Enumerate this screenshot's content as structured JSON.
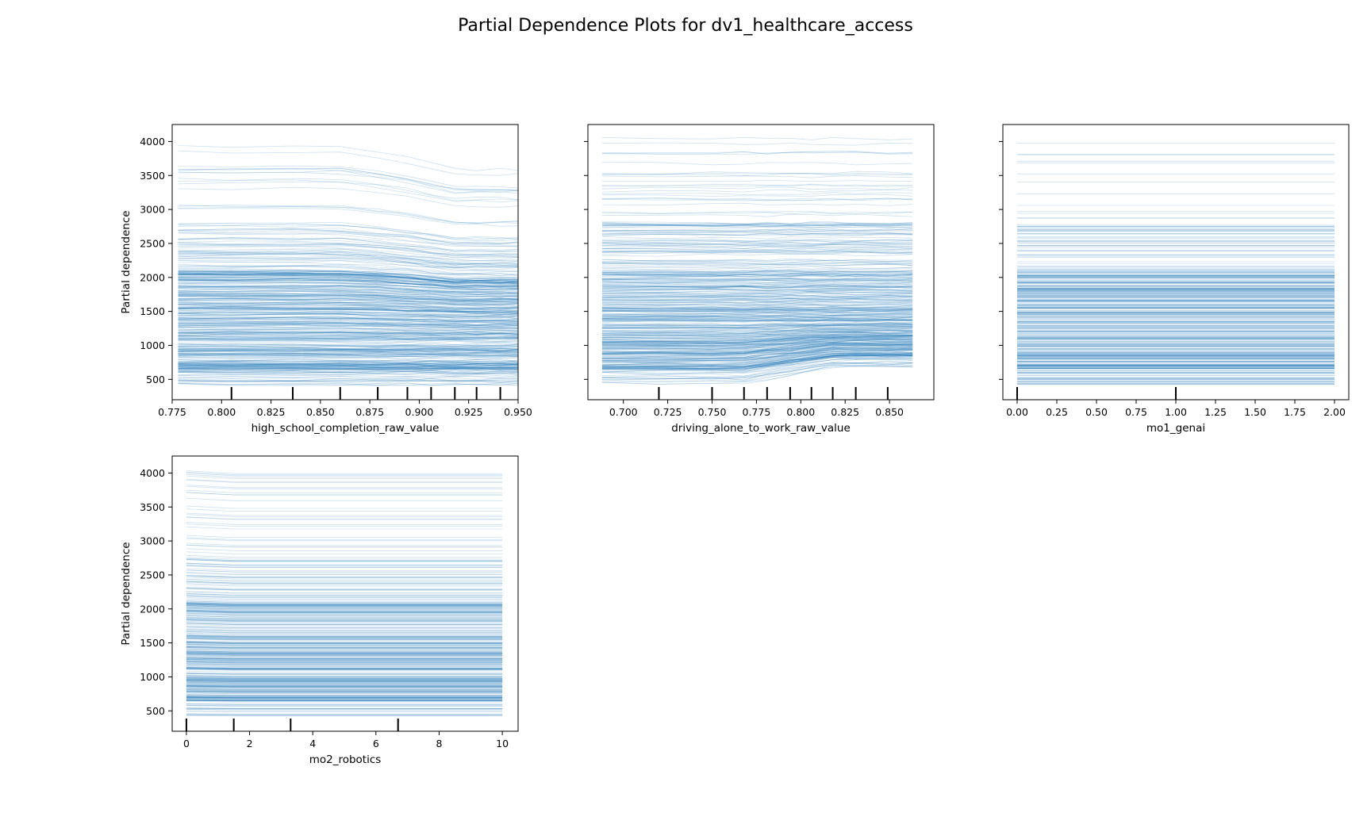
{
  "title": "Partial Dependence Plots for dv1_healthcare_access",
  "line_color": "#1f77b4",
  "chart_data": [
    {
      "type": "line",
      "xlabel": "high_school_completion_raw_value",
      "ylabel": "Partial dependence",
      "xlim": [
        0.775,
        0.95
      ],
      "ylim": [
        200,
        4250
      ],
      "xticks": [
        "0.775",
        "0.800",
        "0.825",
        "0.850",
        "0.875",
        "0.900",
        "0.925",
        "0.950"
      ],
      "yticks": [
        "500",
        "1000",
        "1500",
        "2000",
        "2500",
        "3000",
        "3500",
        "4000"
      ],
      "x": [
        0.778,
        0.805,
        0.836,
        0.86,
        0.879,
        0.894,
        0.906,
        0.918,
        0.929,
        0.941,
        0.95
      ],
      "deciles": [
        0.805,
        0.836,
        0.86,
        0.879,
        0.894,
        0.906,
        0.918,
        0.929,
        0.941
      ],
      "ice_range": [
        420,
        4060
      ]
    },
    {
      "type": "line",
      "xlabel": "driving_alone_to_work_raw_value",
      "ylabel": "",
      "xlim": [
        0.68,
        0.875
      ],
      "ylim": [
        200,
        4250
      ],
      "xticks": [
        "0.700",
        "0.725",
        "0.750",
        "0.775",
        "0.800",
        "0.825",
        "0.850"
      ],
      "yticks": [
        "500",
        "1000",
        "1500",
        "2000",
        "2500",
        "3000",
        "3500",
        "4000"
      ],
      "x": [
        0.688,
        0.72,
        0.75,
        0.768,
        0.781,
        0.794,
        0.806,
        0.818,
        0.831,
        0.849,
        0.863
      ],
      "deciles": [
        0.72,
        0.75,
        0.768,
        0.781,
        0.794,
        0.806,
        0.818,
        0.831,
        0.849
      ],
      "ice_range": [
        420,
        4060
      ]
    },
    {
      "type": "line",
      "xlabel": "mo1_genai",
      "ylabel": "",
      "xlim": [
        -0.09,
        2.09
      ],
      "ylim": [
        200,
        4250
      ],
      "xticks": [
        "0.00",
        "0.25",
        "0.50",
        "0.75",
        "1.00",
        "1.25",
        "1.50",
        "1.75",
        "2.00"
      ],
      "yticks": [
        "500",
        "1000",
        "1500",
        "2000",
        "2500",
        "3000",
        "3500",
        "4000"
      ],
      "x": [
        0,
        2
      ],
      "deciles": [
        0,
        1
      ],
      "ice_range": [
        420,
        4060
      ]
    },
    {
      "type": "line",
      "xlabel": "mo2_robotics",
      "ylabel": "Partial dependence",
      "xlim": [
        -0.45,
        10.5
      ],
      "ylim": [
        200,
        4250
      ],
      "xticks": [
        "0",
        "2",
        "4",
        "6",
        "8",
        "10"
      ],
      "yticks": [
        "500",
        "1000",
        "1500",
        "2000",
        "2500",
        "3000",
        "3500",
        "4000"
      ],
      "x": [
        0,
        1.5,
        3.3,
        6.7,
        10
      ],
      "deciles": [
        0,
        1.5,
        3.3,
        6.7
      ],
      "ice_range": [
        420,
        4060
      ]
    }
  ]
}
